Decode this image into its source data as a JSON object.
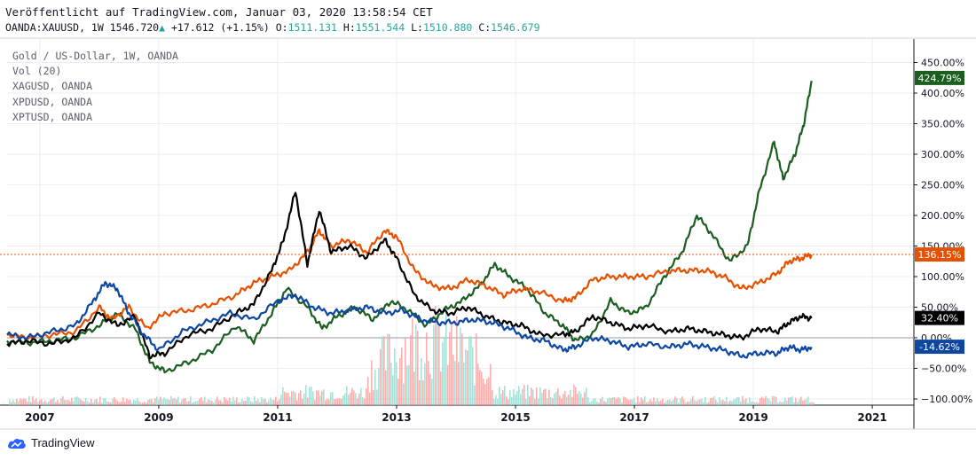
{
  "header": {
    "published": "Veröffentlicht auf TradingView.com, Januar 03, 2020 13:58:54 CET",
    "symbol": "OANDA:XAUUSD, 1W",
    "last": "1546.720",
    "change_arrow": "▲",
    "change": "+17.612 (+1.15%)",
    "o_label": "O:",
    "o_value": "1511.131",
    "h_label": "H:",
    "h_value": "1551.544",
    "l_label": "L:",
    "l_value": "1510.880",
    "c_label": "C:",
    "c_value": "1546.679"
  },
  "legend": {
    "main": "Gold / US-Dollar, 1W, OANDA",
    "vol": "Vol (20)",
    "items": [
      "XAGUSD, OANDA",
      "XPDUSD, OANDA",
      "XPTUSD, OANDA"
    ]
  },
  "footer": {
    "brand": "TradingView"
  },
  "colors": {
    "gold": "#e65100",
    "silver": "#000000",
    "palladium": "#1b5e20",
    "platinum": "#0d47a1",
    "vol_up": "#9fd9d2",
    "vol_down": "#f5a3a3",
    "grid": "#e9edf2",
    "axis_text": "#131722"
  },
  "chart_data": {
    "type": "line",
    "y_scale": "percent",
    "ylim": [
      -100,
      470
    ],
    "xlim": [
      "2006-06",
      "2021-08"
    ],
    "y_ticks": [
      "450.00%",
      "400.00%",
      "350.00%",
      "300.00%",
      "250.00%",
      "200.00%",
      "150.00%",
      "100.00%",
      "50.00%",
      "0.00%",
      "−50.00%",
      "−100.00%"
    ],
    "y_tick_values": [
      450,
      400,
      350,
      300,
      250,
      200,
      150,
      100,
      50,
      0,
      -50,
      -100
    ],
    "x_ticks": [
      "2007",
      "2009",
      "2011",
      "2013",
      "2015",
      "2017",
      "2019",
      "2021"
    ],
    "x_tick_values": [
      2007,
      2009,
      2011,
      2013,
      2015,
      2017,
      2019,
      2021
    ],
    "grid": true,
    "series": [
      {
        "key": "palladium",
        "color": "#1b5e20",
        "last_label": "424.79%",
        "last": 424.79,
        "x": [
          2006.45,
          2006.8,
          2007.2,
          2007.6,
          2008.0,
          2008.3,
          2008.6,
          2008.85,
          2009.1,
          2009.5,
          2009.9,
          2010.3,
          2010.6,
          2010.9,
          2011.15,
          2011.5,
          2011.75,
          2012.0,
          2012.3,
          2012.6,
          2012.9,
          2013.2,
          2013.5,
          2013.8,
          2014.1,
          2014.4,
          2014.65,
          2014.9,
          2015.2,
          2015.5,
          2015.8,
          2016.0,
          2016.3,
          2016.6,
          2016.9,
          2017.2,
          2017.5,
          2017.8,
          2018.05,
          2018.3,
          2018.6,
          2018.9,
          2019.1,
          2019.35,
          2019.5,
          2019.7,
          2019.85,
          2019.98
        ],
        "y": [
          -5,
          -8,
          -5,
          0,
          20,
          40,
          15,
          -40,
          -55,
          -40,
          -20,
          20,
          -5,
          40,
          80,
          50,
          15,
          35,
          50,
          30,
          60,
          45,
          20,
          45,
          60,
          85,
          120,
          100,
          80,
          40,
          20,
          -5,
          5,
          60,
          40,
          50,
          100,
          140,
          200,
          170,
          125,
          150,
          240,
          320,
          260,
          300,
          350,
          420
        ]
      },
      {
        "key": "gold",
        "color": "#e65100",
        "last_label": "136.15%",
        "last": 136.15,
        "x": [
          2006.45,
          2006.8,
          2007.2,
          2007.6,
          2008.0,
          2008.2,
          2008.5,
          2008.8,
          2009.1,
          2009.5,
          2009.9,
          2010.3,
          2010.6,
          2010.9,
          2011.2,
          2011.5,
          2011.7,
          2011.9,
          2012.2,
          2012.5,
          2012.8,
          2013.0,
          2013.3,
          2013.6,
          2013.9,
          2014.2,
          2014.5,
          2014.8,
          2015.1,
          2015.4,
          2015.8,
          2016.0,
          2016.3,
          2016.6,
          2016.9,
          2017.2,
          2017.6,
          2017.9,
          2018.2,
          2018.5,
          2018.8,
          2019.1,
          2019.4,
          2019.6,
          2019.8,
          2019.98
        ],
        "y": [
          5,
          0,
          5,
          10,
          50,
          30,
          50,
          15,
          40,
          45,
          55,
          70,
          90,
          100,
          110,
          140,
          175,
          150,
          160,
          140,
          175,
          165,
          110,
          85,
          80,
          95,
          85,
          70,
          80,
          75,
          60,
          65,
          95,
          100,
          100,
          100,
          110,
          110,
          110,
          100,
          80,
          90,
          105,
          125,
          130,
          136
        ]
      },
      {
        "key": "silver",
        "color": "#000000",
        "last_label": "32.40%",
        "last": 32.4,
        "x": [
          2006.45,
          2006.8,
          2007.2,
          2007.6,
          2008.0,
          2008.3,
          2008.6,
          2008.85,
          2009.1,
          2009.5,
          2009.9,
          2010.3,
          2010.6,
          2010.9,
          2011.1,
          2011.3,
          2011.5,
          2011.7,
          2011.9,
          2012.2,
          2012.5,
          2012.8,
          2013.0,
          2013.3,
          2013.6,
          2013.9,
          2014.2,
          2014.5,
          2014.8,
          2015.1,
          2015.4,
          2015.8,
          2016.0,
          2016.3,
          2016.6,
          2016.9,
          2017.2,
          2017.6,
          2017.9,
          2018.2,
          2018.5,
          2018.8,
          2019.1,
          2019.4,
          2019.6,
          2019.8,
          2019.98
        ],
        "y": [
          -10,
          -5,
          -10,
          0,
          40,
          20,
          35,
          -30,
          -25,
          5,
          15,
          40,
          55,
          110,
          160,
          240,
          120,
          210,
          140,
          150,
          130,
          160,
          130,
          70,
          45,
          40,
          50,
          35,
          25,
          20,
          5,
          5,
          10,
          35,
          25,
          15,
          20,
          10,
          15,
          10,
          5,
          0,
          15,
          10,
          25,
          35,
          32
        ]
      },
      {
        "key": "platinum",
        "color": "#0d47a1",
        "last_label": "-14.62%",
        "last": -14.62,
        "x": [
          2006.45,
          2006.8,
          2007.2,
          2007.6,
          2007.9,
          2008.1,
          2008.3,
          2008.5,
          2008.75,
          2009.0,
          2009.4,
          2009.8,
          2010.2,
          2010.6,
          2011.0,
          2011.3,
          2011.6,
          2011.9,
          2012.2,
          2012.5,
          2012.8,
          2013.1,
          2013.4,
          2013.7,
          2014.0,
          2014.3,
          2014.6,
          2014.9,
          2015.2,
          2015.5,
          2015.8,
          2016.0,
          2016.3,
          2016.6,
          2016.9,
          2017.2,
          2017.6,
          2017.9,
          2018.2,
          2018.5,
          2018.8,
          2019.1,
          2019.4,
          2019.6,
          2019.8,
          2019.98
        ],
        "y": [
          5,
          0,
          10,
          20,
          60,
          90,
          80,
          40,
          5,
          -20,
          10,
          25,
          40,
          30,
          60,
          70,
          50,
          40,
          45,
          50,
          40,
          45,
          30,
          25,
          25,
          30,
          25,
          15,
          0,
          -5,
          -20,
          -15,
          0,
          -5,
          -15,
          -10,
          -15,
          -10,
          -15,
          -20,
          -30,
          -25,
          -25,
          -15,
          -20,
          -15
        ]
      }
    ]
  }
}
